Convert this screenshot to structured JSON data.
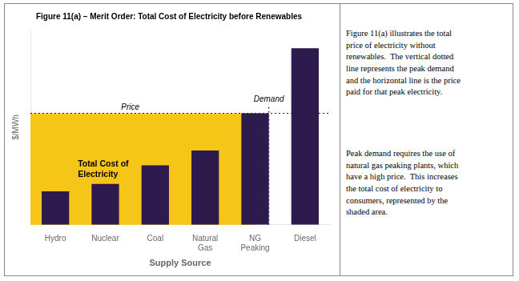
{
  "chart_data": {
    "type": "bar",
    "title": "Figure 11(a) – Merit Order: Total Cost of Electricity before Renewables",
    "xlabel": "Supply Source",
    "ylabel": "$/MWh",
    "categories": [
      "Hydro",
      "Nuclear",
      "Coal",
      "Natural\nGas",
      "NG\nPeaking",
      "Diesel"
    ],
    "values": [
      0.18,
      0.22,
      0.32,
      0.4,
      0.6,
      0.95
    ],
    "color": "#2d1b4e",
    "ylim": [
      0,
      1.05
    ],
    "yticks": [],
    "tick_labels": "x",
    "grid": false,
    "price_line": 0.6,
    "price_label": "Price",
    "demand_category": "NG\nPeaking",
    "demand_label": "Demand",
    "shaded_area": {
      "label": "Total Cost of\nElectricity",
      "color": "#f5c518"
    },
    "text_blocks": [
      "Figure 11(a) illustrates the total\nprice of electricity without\nrenewables.  The vertical dotted\nline represents the peak demand\nand the horizontal line is the price\npaid for that peak electricity.",
      "Peak demand requires the use of\nnatural gas peaking plants, which\nhave a high price.  This increases\nthe total cost of electricity to\nconsumers, represented by the\nshaded area."
    ]
  }
}
